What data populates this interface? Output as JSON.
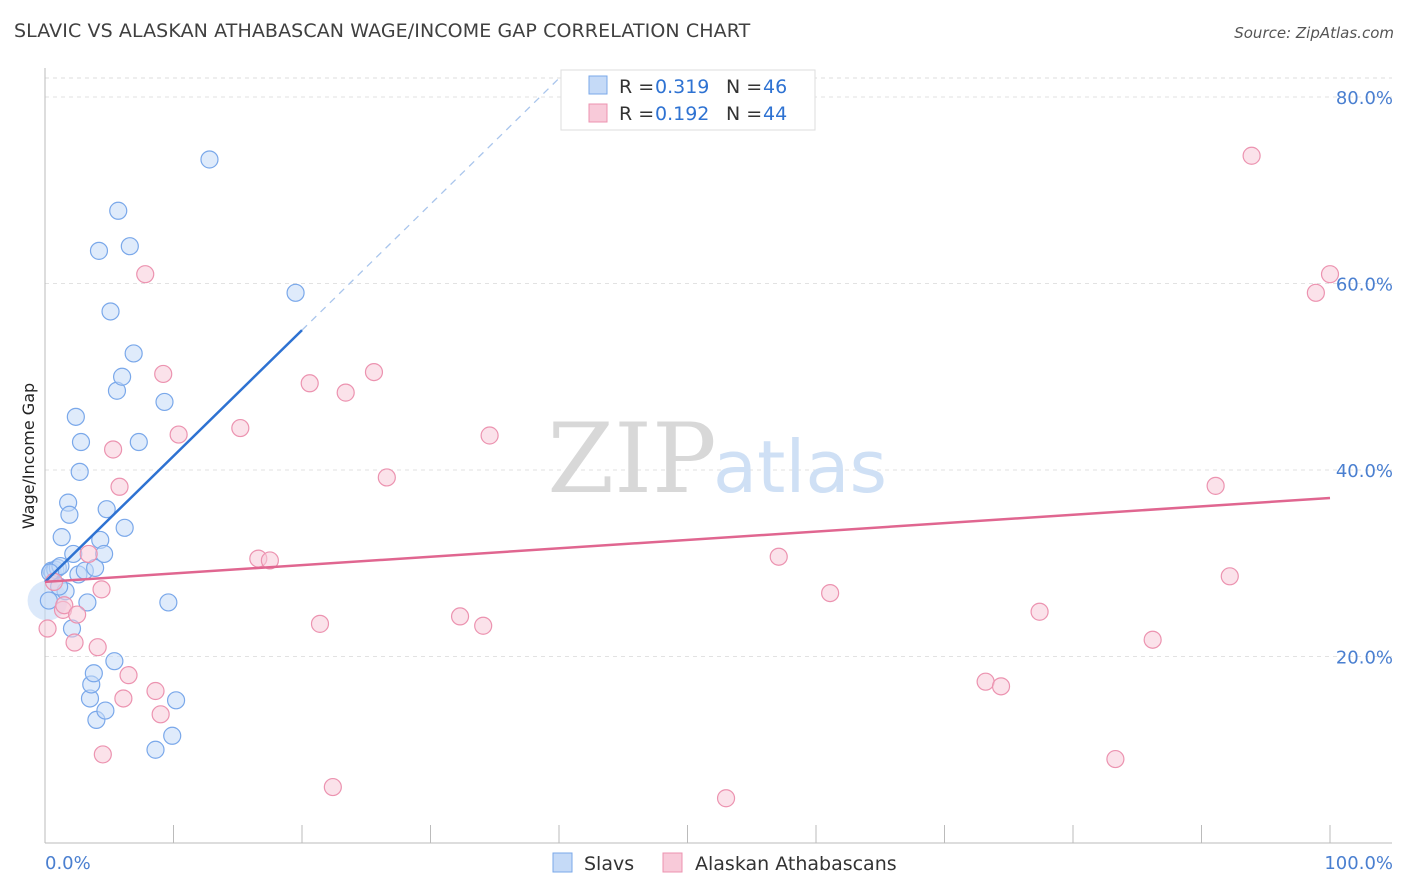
{
  "title": "SLAVIC VS ALASKAN ATHABASCAN WAGE/INCOME GAP CORRELATION CHART",
  "source": "Source: ZipAtlas.com",
  "watermark": {
    "zip": "ZIP",
    "atlas": "atlas"
  },
  "chart_data": {
    "type": "scatter",
    "xlabel": "",
    "ylabel": "Wage/Income Gap",
    "xlim": [
      0,
      100
    ],
    "ylim": [
      0,
      80
    ],
    "x_tick_labels": {
      "left": "0.0%",
      "right": "100.0%"
    },
    "y_ticks": [
      {
        "value": 20,
        "label": "20.0%"
      },
      {
        "value": 40,
        "label": "40.0%"
      },
      {
        "value": 60,
        "label": "60.0%"
      },
      {
        "value": 80,
        "label": "80.0%"
      }
    ],
    "legend": {
      "entries": [
        {
          "r_label": "R = ",
          "r_value": "0.319",
          "n_label": "N = ",
          "n_value": "46"
        },
        {
          "r_label": "R = ",
          "r_value": "0.192",
          "n_label": "N = ",
          "n_value": "44"
        }
      ]
    },
    "series": [
      {
        "name": "Slavs",
        "color": "#7aa8ea",
        "fill": "#c5daf7",
        "line_color": "#2e72d2",
        "trend": {
          "x0": 0.0,
          "y0": 28.0,
          "x1": 20.0,
          "y1": 55.0,
          "dash_x1": 40.0,
          "dash_y1": 82.0
        },
        "points": [
          [
            0.3,
            26.0
          ],
          [
            0.5,
            29.2
          ],
          [
            0.6,
            29.0
          ],
          [
            0.8,
            29.3
          ],
          [
            1.0,
            29.5
          ],
          [
            1.2,
            29.7
          ],
          [
            1.3,
            32.8
          ],
          [
            1.6,
            27.0
          ],
          [
            1.8,
            36.5
          ],
          [
            1.9,
            35.2
          ],
          [
            2.1,
            23.0
          ],
          [
            2.2,
            31.0
          ],
          [
            2.4,
            45.7
          ],
          [
            2.6,
            28.8
          ],
          [
            2.7,
            39.8
          ],
          [
            2.8,
            43.0
          ],
          [
            3.1,
            29.2
          ],
          [
            3.3,
            25.8
          ],
          [
            3.5,
            15.5
          ],
          [
            3.6,
            17.0
          ],
          [
            3.8,
            18.2
          ],
          [
            3.9,
            29.5
          ],
          [
            4.0,
            13.2
          ],
          [
            4.2,
            63.5
          ],
          [
            4.3,
            32.5
          ],
          [
            4.6,
            31.0
          ],
          [
            4.7,
            14.2
          ],
          [
            4.8,
            35.8
          ],
          [
            5.1,
            57.0
          ],
          [
            5.4,
            19.5
          ],
          [
            5.6,
            48.5
          ],
          [
            5.7,
            67.8
          ],
          [
            6.0,
            50.0
          ],
          [
            6.2,
            33.8
          ],
          [
            6.6,
            64.0
          ],
          [
            6.9,
            52.5
          ],
          [
            7.3,
            43.0
          ],
          [
            8.6,
            10.0
          ],
          [
            9.3,
            47.3
          ],
          [
            9.6,
            25.8
          ],
          [
            9.9,
            11.5
          ],
          [
            10.2,
            15.3
          ],
          [
            12.8,
            73.3
          ],
          [
            19.5,
            59.0
          ],
          [
            0.4,
            29.0
          ],
          [
            1.1,
            27.5
          ]
        ]
      },
      {
        "name": "Alaskan Athabascans",
        "color": "#ec93b0",
        "fill": "#f8cad9",
        "line_color": "#e06690",
        "trend": {
          "x0": 0.0,
          "y0": 28.0,
          "x1": 100.0,
          "y1": 37.0
        },
        "points": [
          [
            0.2,
            23.0
          ],
          [
            0.7,
            28.0
          ],
          [
            1.4,
            25.0
          ],
          [
            1.5,
            25.5
          ],
          [
            2.3,
            21.5
          ],
          [
            2.5,
            24.5
          ],
          [
            3.4,
            31.0
          ],
          [
            4.1,
            21.0
          ],
          [
            4.4,
            27.2
          ],
          [
            4.5,
            9.5
          ],
          [
            5.3,
            42.2
          ],
          [
            5.8,
            38.2
          ],
          [
            6.1,
            15.5
          ],
          [
            6.5,
            18.0
          ],
          [
            7.8,
            61.0
          ],
          [
            8.6,
            16.3
          ],
          [
            9.0,
            13.8
          ],
          [
            9.2,
            50.3
          ],
          [
            10.4,
            43.8
          ],
          [
            15.2,
            44.5
          ],
          [
            16.6,
            30.5
          ],
          [
            17.5,
            30.3
          ],
          [
            20.6,
            49.3
          ],
          [
            21.4,
            23.5
          ],
          [
            22.4,
            6.0
          ],
          [
            23.4,
            48.3
          ],
          [
            25.6,
            50.5
          ],
          [
            26.6,
            39.2
          ],
          [
            32.3,
            24.3
          ],
          [
            34.1,
            23.3
          ],
          [
            34.6,
            43.7
          ],
          [
            53.0,
            4.8
          ],
          [
            57.1,
            30.7
          ],
          [
            61.1,
            26.8
          ],
          [
            73.2,
            17.3
          ],
          [
            74.4,
            16.8
          ],
          [
            77.4,
            24.8
          ],
          [
            83.3,
            9.0
          ],
          [
            86.2,
            21.8
          ],
          [
            91.1,
            38.3
          ],
          [
            92.2,
            28.6
          ],
          [
            93.9,
            73.7
          ],
          [
            98.9,
            59.0
          ],
          [
            100.0,
            61.0
          ]
        ]
      }
    ]
  }
}
